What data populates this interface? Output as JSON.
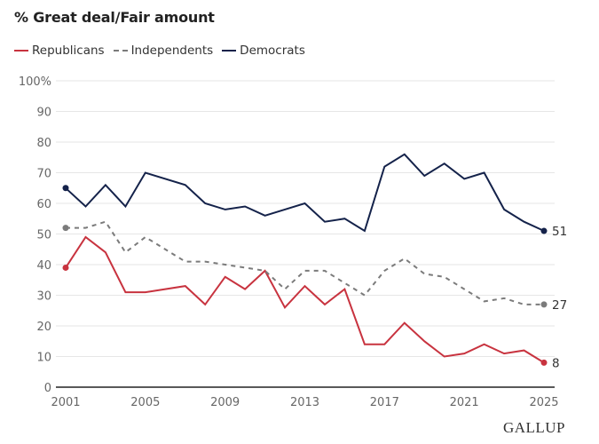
{
  "chart_data": {
    "type": "line",
    "title": "% Great deal/Fair amount",
    "xlabel": "",
    "ylabel": "",
    "ylim": [
      0,
      100
    ],
    "xlim": [
      2001,
      2025
    ],
    "yticks": [
      "0",
      "10",
      "20",
      "30",
      "40",
      "50",
      "60",
      "70",
      "80",
      "90",
      "100%"
    ],
    "ytick_values": [
      0,
      10,
      20,
      30,
      40,
      50,
      60,
      70,
      80,
      90,
      100
    ],
    "xticks": [
      "2001",
      "2005",
      "2009",
      "2013",
      "2017",
      "2021",
      "2025"
    ],
    "xtick_values": [
      2001,
      2005,
      2009,
      2013,
      2017,
      2021,
      2025
    ],
    "grid": true,
    "legend_position": "top-left",
    "x": [
      2001,
      2002,
      2003,
      2004,
      2005,
      2007,
      2008,
      2009,
      2010,
      2011,
      2012,
      2013,
      2014,
      2015,
      2016,
      2017,
      2018,
      2019,
      2020,
      2021,
      2022,
      2023,
      2024,
      2025
    ],
    "series": [
      {
        "name": "Republicans",
        "color": "#c8333f",
        "style": "solid",
        "values": [
          39,
          49,
          44,
          31,
          31,
          33,
          27,
          36,
          32,
          38,
          26,
          33,
          27,
          32,
          14,
          14,
          21,
          15,
          10,
          11,
          14,
          11,
          12,
          8
        ],
        "end_label": "8"
      },
      {
        "name": "Independents",
        "color": "#7b7b7b",
        "style": "dashed",
        "values": [
          52,
          52,
          54,
          44,
          49,
          41,
          41,
          40,
          39,
          38,
          32,
          38,
          38,
          34,
          30,
          38,
          42,
          37,
          36,
          32,
          28,
          29,
          27,
          27
        ],
        "end_label": "27"
      },
      {
        "name": "Democrats",
        "color": "#14224a",
        "style": "solid",
        "values": [
          65,
          59,
          66,
          59,
          70,
          66,
          60,
          58,
          59,
          56,
          58,
          60,
          54,
          55,
          51,
          72,
          76,
          69,
          73,
          68,
          70,
          58,
          54,
          51
        ],
        "end_label": "51"
      }
    ]
  },
  "legend": {
    "items": [
      "Republicans",
      "Independents",
      "Democrats"
    ]
  },
  "source_logo": "GALLUP"
}
